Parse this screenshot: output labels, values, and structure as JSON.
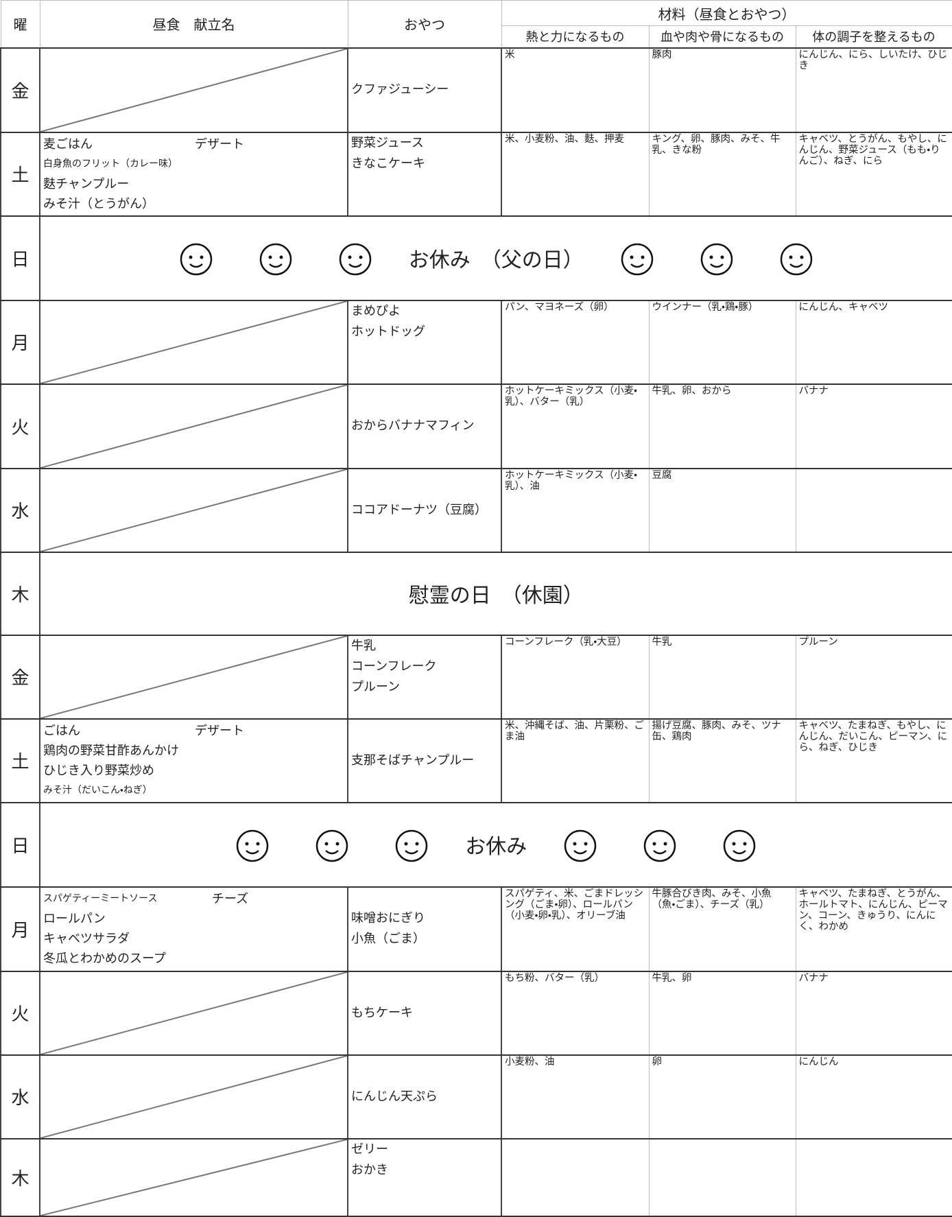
{
  "header": {
    "day": "曜",
    "lunch": "昼食　献立名",
    "snack": "おやつ",
    "ingredients": "材料（昼食とおやつ）",
    "energy": "熱と力になるもの",
    "body": "血や肉や骨になるもの",
    "condition": "体の調子を整えるもの"
  },
  "rows": [
    {
      "day": "金",
      "snack": [
        "クファジューシー"
      ],
      "energy": "米",
      "body": "豚肉",
      "condition": "にんじん、にら、しいたけ、ひじき"
    },
    {
      "day": "土",
      "lunch": [
        "麦ごはん",
        "白身魚のフリット（カレー味）",
        "麩チャンプルー",
        "みそ汁（とうがん）"
      ],
      "lunch_extra": "デザート",
      "snack": [
        "野菜ジュース",
        "きなこケーキ"
      ],
      "energy": "米、小麦粉、油、麩、押麦",
      "body": "キング、卵、豚肉、みそ、牛乳、きな粉",
      "condition": "キャベツ、とうがん、もやし、にんじん、野菜ジュース（もも・りんご）、ねぎ、にら"
    },
    {
      "day": "日",
      "holiday": "お休み　（父の日）"
    },
    {
      "day": "月",
      "snack": [
        "まめぴよ",
        "ホットドッグ"
      ],
      "energy": "パン、マヨネーズ（卵）",
      "body": "ウインナー（乳・鶏・豚）",
      "condition": "にんじん、キャベツ"
    },
    {
      "day": "火",
      "snack": [
        "おからバナナマフィン"
      ],
      "energy": "ホットケーキミックス（小麦・乳）、バター（乳）",
      "body": "牛乳、卵、おから",
      "condition": "バナナ"
    },
    {
      "day": "水",
      "snack": [
        "ココアドーナツ（豆腐）"
      ],
      "energy": "ホットケーキミックス（小麦・乳）、油",
      "body": "豆腐"
    },
    {
      "day": "木",
      "holiday": "慰霊の日　（休園）"
    },
    {
      "day": "金",
      "snack": [
        "牛乳",
        "コーンフレーク",
        "プルーン"
      ],
      "energy": "コーンフレーク（乳・大豆）",
      "body": "牛乳",
      "condition": "プルーン"
    },
    {
      "day": "土",
      "lunch": [
        "ごはん",
        "鶏肉の野菜甘酢あんかけ",
        "ひじき入り野菜炒め",
        "みそ汁（だいこん・ねぎ）"
      ],
      "lunch_extra": "デザート",
      "snack": [
        "支那そばチャンプルー"
      ],
      "energy": "米、沖縄そば、油、片栗粉、ごま油",
      "body": "揚げ豆腐、豚肉、みそ、ツナ缶、鶏肉",
      "condition": "キャベツ、たまねぎ、もやし、にんじん、だいこん、ピーマン、にら、ねぎ、ひじき"
    },
    {
      "day": "日",
      "holiday": "お休み"
    },
    {
      "day": "月",
      "lunch": [
        "スパゲティーミートソース",
        "ロールパン",
        "キャベツサラダ",
        "冬瓜とわかめのスープ"
      ],
      "lunch_extra": "チーズ",
      "snack": [
        "味噌おにぎり",
        "小魚（ごま）"
      ],
      "energy": "スパゲティ、米、ごまドレッシング（ごま・卵）、ロールパン（小麦・卵・乳）、オリーブ油",
      "body": "牛豚合びき肉、みそ、小魚（魚・ごま）、チーズ（乳）",
      "condition": "キャベツ、たまねぎ、とうがん、ホールトマト、にんじん、ピーマン、コーン、きゅうり、にんにく、わかめ"
    },
    {
      "day": "火",
      "snack": [
        "もちケーキ"
      ],
      "energy": "もち粉、バター（乳）",
      "body": "牛乳、卵",
      "condition": "バナナ"
    },
    {
      "day": "水",
      "snack": [
        "にんじん天ぷら"
      ],
      "energy": "小麦粉、油",
      "body": "卵",
      "condition": "にんじん"
    },
    {
      "day": "木",
      "snack": [
        "ゼリー",
        "おかき"
      ]
    }
  ]
}
